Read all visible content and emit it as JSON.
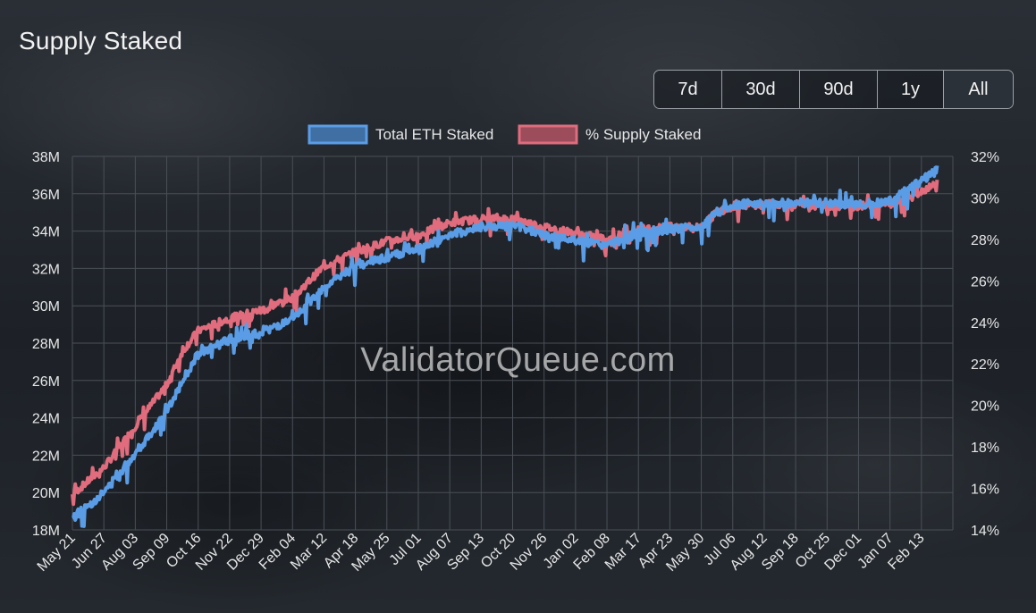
{
  "title": "Supply Staked",
  "watermark": "ValidatorQueue.com",
  "range_buttons": [
    {
      "label": "7d",
      "active": false
    },
    {
      "label": "30d",
      "active": false
    },
    {
      "label": "90d",
      "active": false
    },
    {
      "label": "1y",
      "active": false
    },
    {
      "label": "All",
      "active": true
    }
  ],
  "colors": {
    "total_eth": "#5a9de6",
    "pct_supply": "#e06c7d",
    "grid": "#4a4f57"
  },
  "chart_data": {
    "type": "line",
    "legend_position": "top-center",
    "grid": true,
    "x_ticks": [
      "May 21",
      "Jun 27",
      "Aug 03",
      "Sep 09",
      "Oct 16",
      "Nov 22",
      "Dec 29",
      "Feb 04",
      "Mar 12",
      "Apr 18",
      "May 25",
      "Jul 01",
      "Aug 07",
      "Sep 13",
      "Oct 20",
      "Nov 26",
      "Jan 02",
      "Feb 08",
      "Mar 17",
      "Apr 23",
      "May 30",
      "Jul 06",
      "Aug 12",
      "Sep 18",
      "Oct 25",
      "Dec 01",
      "Jan 07",
      "Feb 13"
    ],
    "y_left": {
      "ticks": [
        "18M",
        "20M",
        "22M",
        "24M",
        "26M",
        "28M",
        "30M",
        "32M",
        "34M",
        "36M",
        "38M"
      ],
      "range": [
        18,
        38
      ],
      "unit": "M"
    },
    "y_right": {
      "ticks": [
        "14%",
        "16%",
        "18%",
        "20%",
        "22%",
        "24%",
        "26%",
        "28%",
        "30%",
        "32%"
      ],
      "range": [
        14,
        32
      ],
      "unit": "%"
    },
    "series": [
      {
        "name": "Total ETH Staked",
        "axis": "left",
        "x_index": [
          0,
          1,
          2,
          3,
          3.5,
          4,
          5,
          6,
          7,
          8,
          9,
          10,
          11,
          12,
          13,
          14,
          15,
          16,
          17,
          18,
          19,
          20,
          20.5,
          21,
          22,
          23,
          24,
          25,
          26,
          27,
          27.5
        ],
        "values": [
          18.6,
          20.0,
          22.1,
          24.3,
          26.0,
          27.4,
          28.2,
          28.6,
          29.2,
          31.0,
          32.1,
          32.6,
          33.0,
          33.8,
          34.2,
          34.3,
          33.8,
          33.5,
          33.2,
          33.9,
          34.1,
          34.2,
          35.0,
          35.4,
          35.5,
          35.5,
          35.5,
          35.4,
          35.6,
          36.7,
          37.3
        ]
      },
      {
        "name": "% Supply Staked",
        "axis": "right",
        "x_index": [
          0,
          1,
          2,
          3,
          3.5,
          4,
          5,
          6,
          7,
          8,
          9,
          10,
          11,
          12,
          13,
          14,
          15,
          16,
          17,
          18,
          19,
          20,
          20.5,
          21,
          22,
          23,
          24,
          25,
          26,
          27,
          27.5
        ],
        "values": [
          15.7,
          17.0,
          19.0,
          21.0,
          22.6,
          23.6,
          24.2,
          24.6,
          25.2,
          26.7,
          27.4,
          27.9,
          28.2,
          28.8,
          29.0,
          29.0,
          28.6,
          28.3,
          28.0,
          28.5,
          28.6,
          28.6,
          29.3,
          29.6,
          29.7,
          29.7,
          29.6,
          29.6,
          29.7,
          30.3,
          30.8
        ]
      }
    ]
  }
}
